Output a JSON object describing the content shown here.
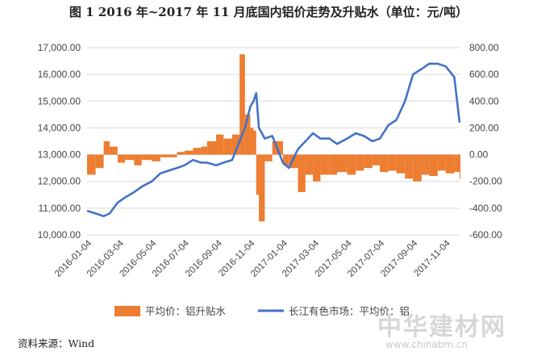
{
  "title": "图 1    2016 年~2017 年 11 月底国内铝价走势及升贴水（单位：元/吨）",
  "source": "资料来源：Wind",
  "watermark": {
    "text": "中华建材网",
    "url": "www.chinabm.cn"
  },
  "chart_data": {
    "type": "bar+line",
    "title": "图 1    2016 年~2017 年 11 月底国内铝价走势及升贴水（单位：元/吨）",
    "x_ticks": [
      "2016-01-04",
      "2016-03-04",
      "2016-05-04",
      "2016-07-04",
      "2016-09-04",
      "2016-11-04",
      "2017-01-04",
      "2017-03-04",
      "2017-05-04",
      "2017-07-04",
      "2017-09-04",
      "2017-11-04"
    ],
    "left_axis": {
      "ylim": [
        10000,
        17000
      ],
      "ticks": [
        "10,000.00",
        "11,000.00",
        "12,000.00",
        "13,000.00",
        "14,000.00",
        "15,000.00",
        "16,000.00",
        "17,000.00"
      ]
    },
    "right_axis": {
      "ylim": [
        -600,
        800
      ],
      "ticks": [
        "-600.00",
        "-400.00",
        "-200.00",
        "0.00",
        "200.00",
        "400.00",
        "600.00",
        "800.00"
      ]
    },
    "legend_position": "bottom",
    "colors": {
      "bar": "#ED7D31",
      "line": "#4472C4",
      "grid": "#d9d9d9"
    },
    "series": [
      {
        "name": "平均价：铝升贴水",
        "type": "bar",
        "axis": "right",
        "x": [
          "2016-01-04",
          "2016-01-20",
          "2016-02-04",
          "2016-02-15",
          "2016-03-01",
          "2016-03-15",
          "2016-04-01",
          "2016-04-15",
          "2016-05-04",
          "2016-05-20",
          "2016-06-04",
          "2016-06-20",
          "2016-07-04",
          "2016-07-20",
          "2016-08-04",
          "2016-08-15",
          "2016-09-01",
          "2016-09-15",
          "2016-10-01",
          "2016-10-15",
          "2016-10-25",
          "2016-11-04",
          "2016-11-10",
          "2016-11-15",
          "2016-11-20",
          "2016-12-01",
          "2016-12-15",
          "2017-01-04",
          "2017-01-15",
          "2017-02-01",
          "2017-02-15",
          "2017-03-01",
          "2017-03-15",
          "2017-04-01",
          "2017-04-15",
          "2017-05-04",
          "2017-05-20",
          "2017-06-04",
          "2017-06-20",
          "2017-07-04",
          "2017-07-20",
          "2017-08-04",
          "2017-08-20",
          "2017-09-04",
          "2017-09-20",
          "2017-10-04",
          "2017-10-20",
          "2017-11-04",
          "2017-11-20",
          "2017-11-30"
        ],
        "values": [
          -150,
          -100,
          100,
          60,
          -60,
          -40,
          -80,
          -40,
          -50,
          -20,
          -20,
          20,
          30,
          50,
          60,
          100,
          150,
          120,
          150,
          750,
          300,
          200,
          180,
          -300,
          -500,
          -50,
          100,
          -80,
          -100,
          -280,
          -150,
          -200,
          -150,
          -150,
          -130,
          -150,
          -120,
          -100,
          -80,
          -130,
          -120,
          -140,
          -180,
          -200,
          -150,
          -160,
          -120,
          -140,
          -130,
          -180
        ]
      },
      {
        "name": "长江有色市场：平均价：铝",
        "type": "line",
        "axis": "left",
        "x": [
          "2016-01-04",
          "2016-01-20",
          "2016-02-04",
          "2016-02-15",
          "2016-03-01",
          "2016-03-15",
          "2016-04-01",
          "2016-04-15",
          "2016-05-04",
          "2016-05-20",
          "2016-06-04",
          "2016-06-20",
          "2016-07-04",
          "2016-07-20",
          "2016-08-04",
          "2016-08-15",
          "2016-09-01",
          "2016-09-15",
          "2016-10-01",
          "2016-10-15",
          "2016-10-25",
          "2016-11-04",
          "2016-11-10",
          "2016-11-15",
          "2016-11-20",
          "2016-12-01",
          "2016-12-15",
          "2017-01-04",
          "2017-01-15",
          "2017-02-01",
          "2017-02-15",
          "2017-03-01",
          "2017-03-15",
          "2017-04-01",
          "2017-04-15",
          "2017-05-04",
          "2017-05-20",
          "2017-06-04",
          "2017-06-20",
          "2017-07-04",
          "2017-07-20",
          "2017-08-04",
          "2017-08-20",
          "2017-09-04",
          "2017-09-20",
          "2017-10-04",
          "2017-10-20",
          "2017-11-04",
          "2017-11-20",
          "2017-11-30"
        ],
        "values": [
          10900,
          10800,
          10700,
          10800,
          11200,
          11400,
          11600,
          11800,
          12000,
          12300,
          12400,
          12500,
          12600,
          12800,
          12700,
          12700,
          12600,
          12700,
          12800,
          13500,
          14000,
          14800,
          15000,
          15300,
          14000,
          13600,
          13700,
          12700,
          12500,
          13200,
          13500,
          13800,
          13600,
          13600,
          13400,
          13600,
          13800,
          13700,
          13500,
          13600,
          14100,
          14300,
          15000,
          16000,
          16200,
          16400,
          16400,
          16300,
          15900,
          14200
        ]
      }
    ]
  }
}
